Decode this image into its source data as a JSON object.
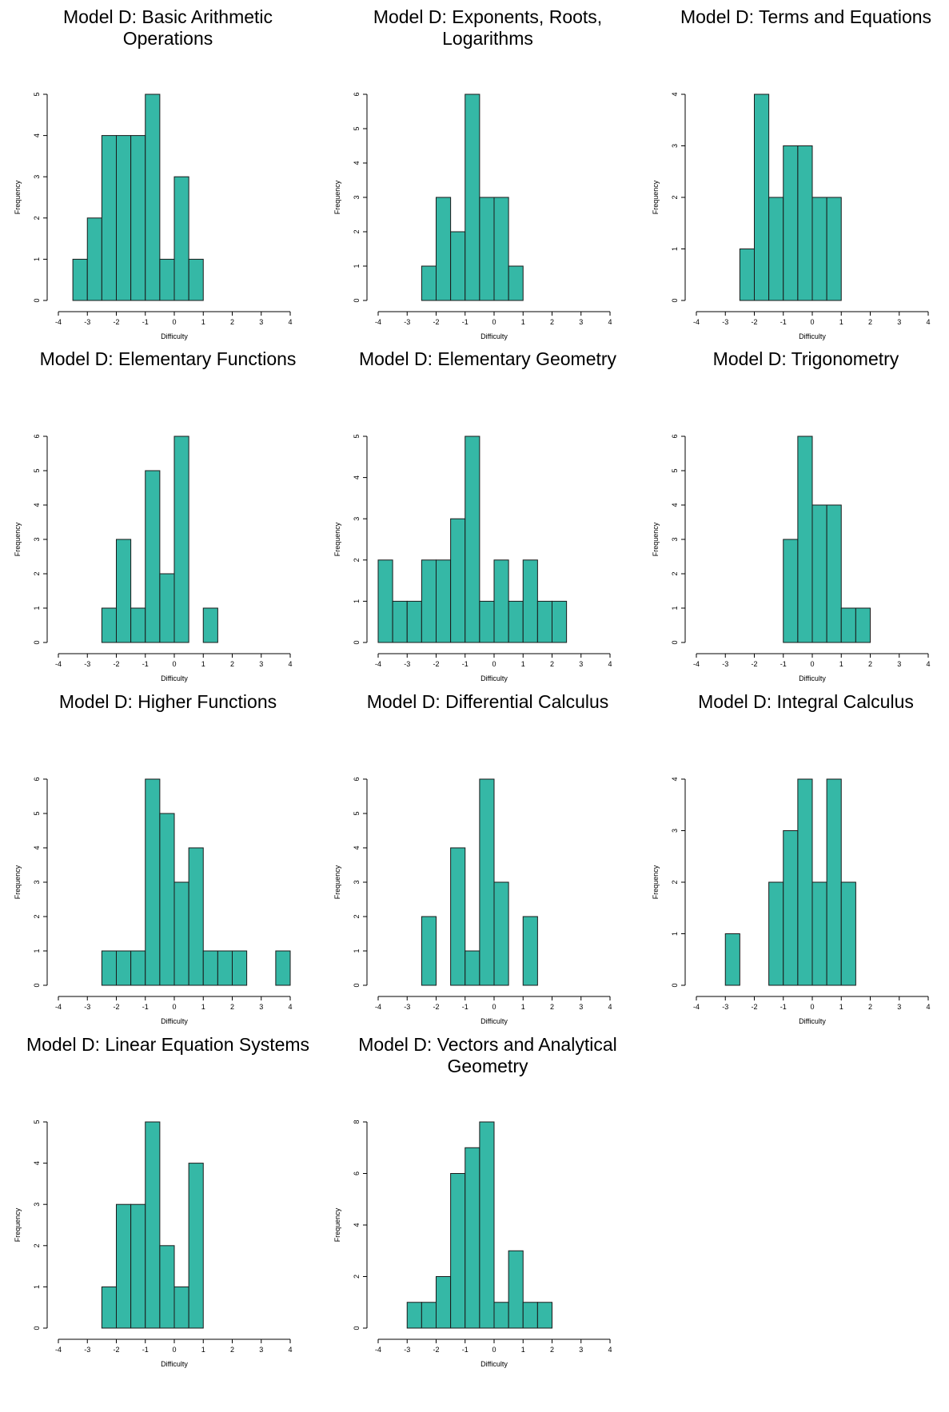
{
  "fill_color": "#35b8a6",
  "edge_color": "#1a1a1a",
  "chart_data": [
    {
      "type": "bar",
      "title": "Model D: Basic Arithmetic Operations",
      "xlabel": "Difficulty",
      "ylabel": "Frequency",
      "xlim": [
        -4,
        4
      ],
      "ylim": [
        0,
        5
      ],
      "x_ticks": [
        -4,
        -3,
        -2,
        -1,
        0,
        1,
        2,
        3,
        4
      ],
      "y_ticks": [
        0,
        1,
        2,
        3,
        4,
        5
      ],
      "bins": [
        [
          -3.5,
          -3.0
        ],
        [
          -3.0,
          -2.5
        ],
        [
          -2.5,
          -2.0
        ],
        [
          -2.0,
          -1.5
        ],
        [
          -1.5,
          -1.0
        ],
        [
          -1.0,
          -0.5
        ],
        [
          -0.5,
          0.0
        ],
        [
          0.0,
          0.5
        ],
        [
          0.5,
          1.0
        ]
      ],
      "values": [
        1,
        2,
        4,
        4,
        4,
        5,
        1,
        3,
        1
      ]
    },
    {
      "type": "bar",
      "title": "Model D: Exponents, Roots, Logarithms",
      "xlabel": "Difficulty",
      "ylabel": "Frequency",
      "xlim": [
        -4,
        4
      ],
      "ylim": [
        0,
        6
      ],
      "x_ticks": [
        -4,
        -3,
        -2,
        -1,
        0,
        1,
        2,
        3,
        4
      ],
      "y_ticks": [
        0,
        1,
        2,
        3,
        4,
        5,
        6
      ],
      "bins": [
        [
          -2.5,
          -2.0
        ],
        [
          -2.0,
          -1.5
        ],
        [
          -1.5,
          -1.0
        ],
        [
          -1.0,
          -0.5
        ],
        [
          -0.5,
          0.0
        ],
        [
          0.0,
          0.5
        ],
        [
          0.5,
          1.0
        ]
      ],
      "values": [
        1,
        3,
        2,
        6,
        3,
        3,
        1
      ]
    },
    {
      "type": "bar",
      "title": "Model D: Terms and Equations",
      "xlabel": "Difficulty",
      "ylabel": "Frequency",
      "xlim": [
        -4,
        4
      ],
      "ylim": [
        0,
        4
      ],
      "x_ticks": [
        -4,
        -3,
        -2,
        -1,
        0,
        1,
        2,
        3,
        4
      ],
      "y_ticks": [
        0,
        1,
        2,
        3,
        4
      ],
      "bins": [
        [
          -2.5,
          -2.0
        ],
        [
          -2.0,
          -1.5
        ],
        [
          -1.5,
          -1.0
        ],
        [
          -1.0,
          -0.5
        ],
        [
          -0.5,
          0.0
        ],
        [
          0.0,
          0.5
        ],
        [
          0.5,
          1.0
        ]
      ],
      "values": [
        1,
        4,
        2,
        3,
        3,
        2,
        2
      ]
    },
    {
      "type": "bar",
      "title": "Model D: Elementary Functions",
      "xlabel": "Difficulty",
      "ylabel": "Frequency",
      "xlim": [
        -4,
        4
      ],
      "ylim": [
        0,
        6
      ],
      "x_ticks": [
        -4,
        -3,
        -2,
        -1,
        0,
        1,
        2,
        3,
        4
      ],
      "y_ticks": [
        0,
        1,
        2,
        3,
        4,
        5,
        6
      ],
      "bins": [
        [
          -2.5,
          -2.0
        ],
        [
          -2.0,
          -1.5
        ],
        [
          -1.5,
          -1.0
        ],
        [
          -1.0,
          -0.5
        ],
        [
          -0.5,
          0.0
        ],
        [
          0.0,
          0.5
        ],
        [
          0.5,
          1.0
        ],
        [
          1.0,
          1.5
        ]
      ],
      "values": [
        1,
        3,
        1,
        5,
        2,
        6,
        0,
        1
      ]
    },
    {
      "type": "bar",
      "title": "Model D: Elementary Geometry",
      "xlabel": "Difficulty",
      "ylabel": "Frequency",
      "xlim": [
        -4,
        4
      ],
      "ylim": [
        0,
        5
      ],
      "x_ticks": [
        -4,
        -3,
        -2,
        -1,
        0,
        1,
        2,
        3,
        4
      ],
      "y_ticks": [
        0,
        1,
        2,
        3,
        4,
        5
      ],
      "bins": [
        [
          -4.0,
          -3.5
        ],
        [
          -3.5,
          -3.0
        ],
        [
          -3.0,
          -2.5
        ],
        [
          -2.5,
          -2.0
        ],
        [
          -2.0,
          -1.5
        ],
        [
          -1.5,
          -1.0
        ],
        [
          -1.0,
          -0.5
        ],
        [
          -0.5,
          0.0
        ],
        [
          0.0,
          0.5
        ],
        [
          0.5,
          1.0
        ],
        [
          1.0,
          1.5
        ],
        [
          1.5,
          2.0
        ],
        [
          2.0,
          2.5
        ]
      ],
      "values": [
        2,
        1,
        1,
        2,
        2,
        3,
        5,
        1,
        2,
        1,
        2,
        1,
        1
      ]
    },
    {
      "type": "bar",
      "title": "Model D: Trigonometry",
      "xlabel": "Difficulty",
      "ylabel": "Frequency",
      "xlim": [
        -4,
        4
      ],
      "ylim": [
        0,
        6
      ],
      "x_ticks": [
        -4,
        -3,
        -2,
        -1,
        0,
        1,
        2,
        3,
        4
      ],
      "y_ticks": [
        0,
        1,
        2,
        3,
        4,
        5,
        6
      ],
      "bins": [
        [
          -1.0,
          -0.5
        ],
        [
          -0.5,
          0.0
        ],
        [
          0.0,
          0.5
        ],
        [
          0.5,
          1.0
        ],
        [
          1.0,
          1.5
        ],
        [
          1.5,
          2.0
        ]
      ],
      "values": [
        3,
        6,
        4,
        4,
        1,
        1
      ]
    },
    {
      "type": "bar",
      "title": "Model D: Higher Functions",
      "xlabel": "Difficulty",
      "ylabel": "Frequency",
      "xlim": [
        -4,
        4
      ],
      "ylim": [
        0,
        6
      ],
      "x_ticks": [
        -4,
        -3,
        -2,
        -1,
        0,
        1,
        2,
        3,
        4
      ],
      "y_ticks": [
        0,
        1,
        2,
        3,
        4,
        5,
        6
      ],
      "bins": [
        [
          -2.5,
          -2.0
        ],
        [
          -2.0,
          -1.5
        ],
        [
          -1.5,
          -1.0
        ],
        [
          -1.0,
          -0.5
        ],
        [
          -0.5,
          0.0
        ],
        [
          0.0,
          0.5
        ],
        [
          0.5,
          1.0
        ],
        [
          1.0,
          1.5
        ],
        [
          1.5,
          2.0
        ],
        [
          2.0,
          2.5
        ],
        [
          2.5,
          3.0
        ],
        [
          3.0,
          3.5
        ],
        [
          3.5,
          4.0
        ]
      ],
      "values": [
        1,
        1,
        1,
        6,
        5,
        3,
        4,
        1,
        1,
        1,
        0,
        0,
        1
      ]
    },
    {
      "type": "bar",
      "title": "Model D: Differential Calculus",
      "xlabel": "Difficulty",
      "ylabel": "Frequency",
      "xlim": [
        -4,
        4
      ],
      "ylim": [
        0,
        6
      ],
      "x_ticks": [
        -4,
        -3,
        -2,
        -1,
        0,
        1,
        2,
        3,
        4
      ],
      "y_ticks": [
        0,
        1,
        2,
        3,
        4,
        5,
        6
      ],
      "bins": [
        [
          -2.5,
          -2.0
        ],
        [
          -2.0,
          -1.5
        ],
        [
          -1.5,
          -1.0
        ],
        [
          -1.0,
          -0.5
        ],
        [
          -0.5,
          0.0
        ],
        [
          0.0,
          0.5
        ],
        [
          0.5,
          1.0
        ],
        [
          1.0,
          1.5
        ]
      ],
      "values": [
        2,
        0,
        4,
        1,
        6,
        3,
        0,
        2
      ]
    },
    {
      "type": "bar",
      "title": "Model D: Integral Calculus",
      "xlabel": "Difficulty",
      "ylabel": "Frequency",
      "xlim": [
        -4,
        4
      ],
      "ylim": [
        0,
        4
      ],
      "x_ticks": [
        -4,
        -3,
        -2,
        -1,
        0,
        1,
        2,
        3,
        4
      ],
      "y_ticks": [
        0,
        1,
        2,
        3,
        4
      ],
      "bins": [
        [
          -3.0,
          -2.5
        ],
        [
          -2.5,
          -2.0
        ],
        [
          -2.0,
          -1.5
        ],
        [
          -1.5,
          -1.0
        ],
        [
          -1.0,
          -0.5
        ],
        [
          -0.5,
          0.0
        ],
        [
          0.0,
          0.5
        ],
        [
          0.5,
          1.0
        ],
        [
          1.0,
          1.5
        ]
      ],
      "values": [
        1,
        0,
        0,
        2,
        3,
        4,
        2,
        4,
        2
      ]
    },
    {
      "type": "bar",
      "title": "Model D: Linear Equation Systems",
      "xlabel": "Difficulty",
      "ylabel": "Frequency",
      "xlim": [
        -4,
        4
      ],
      "ylim": [
        0,
        5
      ],
      "x_ticks": [
        -4,
        -3,
        -2,
        -1,
        0,
        1,
        2,
        3,
        4
      ],
      "y_ticks": [
        0,
        1,
        2,
        3,
        4,
        5
      ],
      "bins": [
        [
          -2.5,
          -2.0
        ],
        [
          -2.0,
          -1.5
        ],
        [
          -1.5,
          -1.0
        ],
        [
          -1.0,
          -0.5
        ],
        [
          -0.5,
          0.0
        ],
        [
          0.0,
          0.5
        ],
        [
          0.5,
          1.0
        ]
      ],
      "values": [
        1,
        3,
        3,
        5,
        2,
        1,
        4
      ]
    },
    {
      "type": "bar",
      "title": "Model D: Vectors and Analytical Geometry",
      "xlabel": "Difficulty",
      "ylabel": "Frequency",
      "xlim": [
        -4,
        4
      ],
      "ylim": [
        0,
        8
      ],
      "x_ticks": [
        -4,
        -3,
        -2,
        -1,
        0,
        1,
        2,
        3,
        4
      ],
      "y_ticks": [
        0,
        2,
        4,
        6,
        8
      ],
      "bins": [
        [
          -3.0,
          -2.5
        ],
        [
          -2.5,
          -2.0
        ],
        [
          -2.0,
          -1.5
        ],
        [
          -1.5,
          -1.0
        ],
        [
          -1.0,
          -0.5
        ],
        [
          -0.5,
          0.0
        ],
        [
          0.0,
          0.5
        ],
        [
          0.5,
          1.0
        ],
        [
          1.0,
          1.5
        ],
        [
          1.5,
          2.0
        ]
      ],
      "values": [
        1,
        1,
        2,
        6,
        7,
        8,
        1,
        3,
        1,
        1
      ]
    }
  ]
}
